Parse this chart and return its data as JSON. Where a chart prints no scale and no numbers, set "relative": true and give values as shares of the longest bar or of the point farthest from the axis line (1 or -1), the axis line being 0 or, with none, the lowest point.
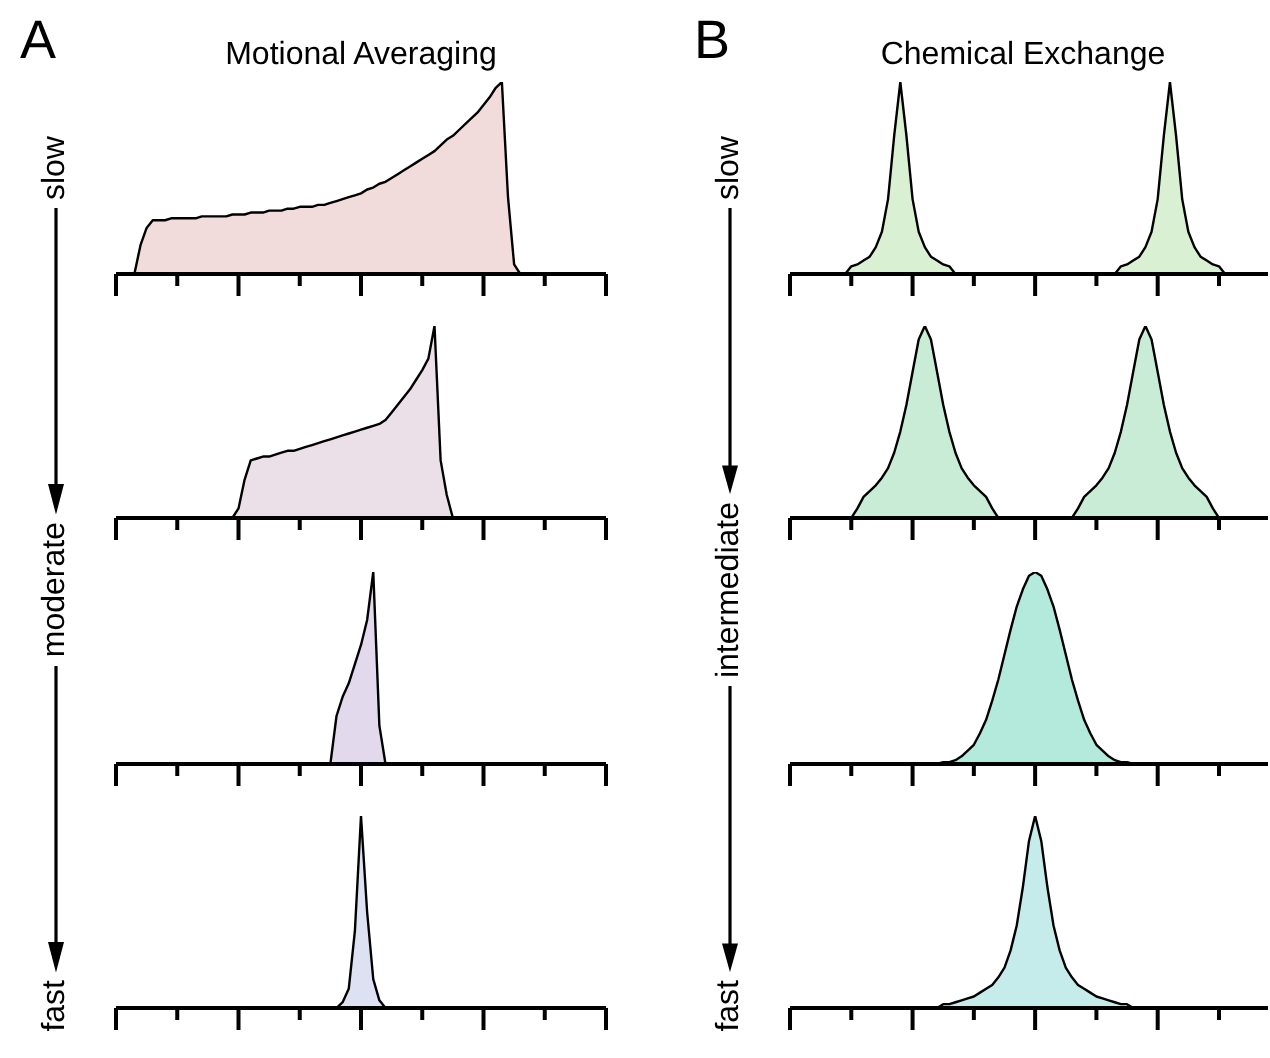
{
  "chart_data": [
    {
      "type": "area",
      "title": "Motional Averaging",
      "annotations": [
        "A",
        "slow"
      ],
      "relative": true,
      "color": "#f2dcdb",
      "categories": [
        null,
        null,
        null,
        null,
        null,
        null,
        null,
        null,
        null,
        null,
        null,
        null,
        null,
        null,
        null,
        null,
        null,
        null,
        null,
        null,
        null,
        null,
        null,
        null,
        null,
        null,
        null,
        null,
        null,
        null,
        null,
        null,
        null,
        null,
        null,
        null,
        null,
        null,
        null,
        null,
        null,
        null,
        null,
        null,
        null,
        null,
        null,
        null,
        null,
        null,
        null,
        null,
        null,
        null,
        null,
        null,
        null,
        null,
        null,
        null,
        null,
        null,
        null,
        null,
        null,
        null,
        null,
        null,
        null,
        null,
        null,
        null,
        null,
        null,
        null,
        null,
        null,
        null,
        null,
        null,
        null
      ],
      "values": [
        0,
        0,
        0,
        0,
        0.15,
        0.24,
        0.28,
        0.28,
        0.28,
        0.29,
        0.29,
        0.29,
        0.29,
        0.29,
        0.3,
        0.3,
        0.3,
        0.3,
        0.3,
        0.31,
        0.31,
        0.31,
        0.32,
        0.32,
        0.32,
        0.33,
        0.33,
        0.33,
        0.34,
        0.34,
        0.35,
        0.35,
        0.35,
        0.36,
        0.36,
        0.37,
        0.38,
        0.39,
        0.4,
        0.41,
        0.42,
        0.44,
        0.45,
        0.47,
        0.48,
        0.5,
        0.52,
        0.54,
        0.56,
        0.58,
        0.6,
        0.62,
        0.64,
        0.67,
        0.7,
        0.72,
        0.75,
        0.78,
        0.81,
        0.84,
        0.88,
        0.92,
        0.97,
        1,
        0.4,
        0.05,
        0,
        0,
        0,
        0,
        0,
        0,
        0,
        0,
        0,
        0,
        0,
        0,
        0,
        0,
        0
      ]
    },
    {
      "type": "area",
      "relative": true,
      "color": "#ebe0e8",
      "categories": [
        null,
        null,
        null,
        null,
        null,
        null,
        null,
        null,
        null,
        null,
        null,
        null,
        null,
        null,
        null,
        null,
        null,
        null,
        null,
        null,
        null,
        null,
        null,
        null,
        null,
        null,
        null,
        null,
        null,
        null,
        null,
        null,
        null,
        null,
        null,
        null,
        null,
        null,
        null,
        null,
        null,
        null,
        null,
        null,
        null,
        null,
        null,
        null,
        null,
        null,
        null,
        null,
        null,
        null,
        null,
        null,
        null,
        null,
        null,
        null,
        null,
        null,
        null,
        null,
        null,
        null,
        null,
        null,
        null,
        null,
        null,
        null,
        null,
        null,
        null,
        null,
        null,
        null,
        null,
        null,
        null
      ],
      "values": [
        0,
        0,
        0,
        0,
        0,
        0,
        0,
        0,
        0,
        0,
        0,
        0,
        0,
        0,
        0,
        0,
        0,
        0,
        0,
        0,
        0.05,
        0.2,
        0.3,
        0.31,
        0.32,
        0.32,
        0.33,
        0.34,
        0.35,
        0.35,
        0.36,
        0.37,
        0.38,
        0.39,
        0.4,
        0.41,
        0.42,
        0.43,
        0.44,
        0.45,
        0.46,
        0.47,
        0.48,
        0.49,
        0.51,
        0.55,
        0.59,
        0.63,
        0.67,
        0.72,
        0.77,
        0.83,
        1,
        0.3,
        0.12,
        0,
        0,
        0,
        0,
        0,
        0,
        0,
        0,
        0,
        0,
        0,
        0,
        0,
        0,
        0,
        0,
        0,
        0,
        0,
        0,
        0,
        0,
        0,
        0,
        0,
        0
      ]
    },
    {
      "type": "area",
      "annotations": [
        "moderate"
      ],
      "relative": true,
      "color": "#e2d9ec",
      "categories": [
        null,
        null,
        null,
        null,
        null,
        null,
        null,
        null,
        null,
        null,
        null,
        null,
        null,
        null,
        null,
        null,
        null,
        null,
        null,
        null,
        null,
        null,
        null,
        null,
        null,
        null,
        null,
        null,
        null,
        null,
        null,
        null,
        null,
        null,
        null,
        null,
        null,
        null,
        null,
        null,
        null,
        null,
        null,
        null,
        null,
        null,
        null,
        null,
        null,
        null,
        null,
        null,
        null,
        null,
        null,
        null,
        null,
        null,
        null,
        null,
        null,
        null,
        null,
        null,
        null,
        null,
        null,
        null,
        null,
        null,
        null,
        null,
        null,
        null,
        null,
        null,
        null,
        null,
        null,
        null,
        null
      ],
      "values": [
        0,
        0,
        0,
        0,
        0,
        0,
        0,
        0,
        0,
        0,
        0,
        0,
        0,
        0,
        0,
        0,
        0,
        0,
        0,
        0,
        0,
        0,
        0,
        0,
        0,
        0,
        0,
        0,
        0,
        0,
        0,
        0,
        0,
        0,
        0,
        0,
        0.25,
        0.35,
        0.42,
        0.52,
        0.62,
        0.75,
        1,
        0.2,
        0,
        0,
        0,
        0,
        0,
        0,
        0,
        0,
        0,
        0,
        0,
        0,
        0,
        0,
        0,
        0,
        0,
        0,
        0,
        0,
        0,
        0,
        0,
        0,
        0,
        0,
        0,
        0,
        0,
        0,
        0,
        0,
        0,
        0,
        0,
        0,
        0
      ]
    },
    {
      "type": "area",
      "annotations": [
        "fast"
      ],
      "relative": true,
      "color": "#dde1f1",
      "categories": [
        null,
        null,
        null,
        null,
        null,
        null,
        null,
        null,
        null,
        null,
        null,
        null,
        null,
        null,
        null,
        null,
        null,
        null,
        null,
        null,
        null,
        null,
        null,
        null,
        null,
        null,
        null,
        null,
        null,
        null,
        null,
        null,
        null,
        null,
        null,
        null,
        null,
        null,
        null,
        null,
        null,
        null,
        null,
        null,
        null,
        null,
        null,
        null,
        null,
        null,
        null,
        null,
        null,
        null,
        null,
        null,
        null,
        null,
        null,
        null,
        null,
        null,
        null,
        null,
        null,
        null,
        null,
        null,
        null,
        null,
        null,
        null,
        null,
        null,
        null,
        null,
        null,
        null,
        null,
        null,
        null
      ],
      "values": [
        0,
        0,
        0,
        0,
        0,
        0,
        0,
        0,
        0,
        0,
        0,
        0,
        0,
        0,
        0,
        0,
        0,
        0,
        0,
        0,
        0,
        0,
        0,
        0,
        0,
        0,
        0,
        0,
        0,
        0,
        0,
        0,
        0,
        0,
        0,
        0,
        0,
        0.03,
        0.1,
        0.4,
        1,
        0.5,
        0.15,
        0.04,
        0,
        0,
        0,
        0,
        0,
        0,
        0,
        0,
        0,
        0,
        0,
        0,
        0,
        0,
        0,
        0,
        0,
        0,
        0,
        0,
        0,
        0,
        0,
        0,
        0,
        0,
        0,
        0,
        0,
        0,
        0,
        0,
        0,
        0,
        0,
        0,
        0
      ]
    },
    {
      "type": "area",
      "title": "Chemical Exchange",
      "annotations": [
        "B",
        "slow"
      ],
      "relative": true,
      "color": "#d9f0d3",
      "categories": [
        null,
        null,
        null,
        null,
        null,
        null,
        null,
        null,
        null,
        null,
        null,
        null,
        null,
        null,
        null,
        null,
        null,
        null,
        null,
        null,
        null,
        null,
        null,
        null,
        null,
        null,
        null,
        null,
        null,
        null,
        null,
        null,
        null,
        null,
        null,
        null,
        null,
        null,
        null,
        null,
        null,
        null,
        null,
        null,
        null,
        null,
        null,
        null,
        null,
        null,
        null,
        null,
        null,
        null,
        null,
        null,
        null,
        null,
        null,
        null,
        null,
        null,
        null,
        null,
        null,
        null,
        null,
        null,
        null,
        null,
        null,
        null,
        null,
        null,
        null,
        null,
        null,
        null,
        null
      ],
      "values": [
        0,
        0,
        0,
        0,
        0,
        0,
        0,
        0,
        0,
        0,
        0.04,
        0.05,
        0.07,
        0.09,
        0.14,
        0.22,
        0.39,
        0.72,
        1,
        0.72,
        0.39,
        0.22,
        0.14,
        0.09,
        0.07,
        0.05,
        0.04,
        0,
        0,
        0,
        0,
        0,
        0,
        0,
        0,
        0,
        0,
        0,
        0,
        0,
        0,
        0,
        0,
        0,
        0,
        0,
        0,
        0,
        0,
        0,
        0,
        0,
        0,
        0,
        0.04,
        0.05,
        0.07,
        0.09,
        0.14,
        0.22,
        0.39,
        0.72,
        1,
        0.72,
        0.39,
        0.22,
        0.14,
        0.09,
        0.07,
        0.05,
        0.04,
        0,
        0,
        0,
        0,
        0,
        0,
        0,
        0
      ]
    },
    {
      "type": "area",
      "relative": true,
      "color": "#c8ecd5",
      "categories": [
        null,
        null,
        null,
        null,
        null,
        null,
        null,
        null,
        null,
        null,
        null,
        null,
        null,
        null,
        null,
        null,
        null,
        null,
        null,
        null,
        null,
        null,
        null,
        null,
        null,
        null,
        null,
        null,
        null,
        null,
        null,
        null,
        null,
        null,
        null,
        null,
        null,
        null,
        null,
        null,
        null,
        null,
        null,
        null,
        null,
        null,
        null,
        null,
        null,
        null,
        null,
        null,
        null,
        null,
        null,
        null,
        null,
        null,
        null,
        null,
        null,
        null,
        null,
        null,
        null,
        null,
        null,
        null,
        null,
        null,
        null,
        null,
        null,
        null,
        null,
        null,
        null,
        null,
        null
      ],
      "values": [
        0,
        0,
        0,
        0,
        0,
        0,
        0,
        0,
        0,
        0,
        0,
        0.05,
        0.11,
        0.14,
        0.17,
        0.21,
        0.26,
        0.34,
        0.45,
        0.59,
        0.76,
        0.93,
        1,
        0.93,
        0.76,
        0.59,
        0.45,
        0.34,
        0.26,
        0.21,
        0.17,
        0.14,
        0.11,
        0.05,
        0,
        0,
        0,
        0,
        0,
        0,
        0,
        0,
        0,
        0,
        0,
        0,
        0,
        0.05,
        0.11,
        0.14,
        0.17,
        0.21,
        0.26,
        0.34,
        0.45,
        0.59,
        0.76,
        0.93,
        1,
        0.93,
        0.76,
        0.59,
        0.45,
        0.34,
        0.26,
        0.21,
        0.17,
        0.14,
        0.11,
        0.05,
        0,
        0,
        0,
        0,
        0,
        0,
        0,
        0,
        0
      ]
    },
    {
      "type": "area",
      "annotations": [
        "intermediate"
      ],
      "relative": true,
      "color": "#b3eadb",
      "categories": [
        null,
        null,
        null,
        null,
        null,
        null,
        null,
        null,
        null,
        null,
        null,
        null,
        null,
        null,
        null,
        null,
        null,
        null,
        null,
        null,
        null,
        null,
        null,
        null,
        null,
        null,
        null,
        null,
        null,
        null,
        null,
        null,
        null,
        null,
        null,
        null,
        null,
        null,
        null,
        null,
        null,
        null,
        null,
        null,
        null,
        null,
        null,
        null,
        null,
        null,
        null,
        null,
        null,
        null,
        null,
        null,
        null,
        null,
        null,
        null,
        null,
        null,
        null,
        null,
        null,
        null,
        null,
        null,
        null,
        null,
        null,
        null,
        null,
        null,
        null,
        null,
        null,
        null,
        null
      ],
      "values": [
        0,
        0,
        0,
        0,
        0,
        0,
        0,
        0,
        0,
        0,
        0,
        0,
        0,
        0,
        0,
        0,
        0,
        0,
        0,
        0,
        0,
        0,
        0,
        0,
        0,
        0.01,
        0.01,
        0.02,
        0.04,
        0.07,
        0.1,
        0.16,
        0.23,
        0.33,
        0.44,
        0.57,
        0.7,
        0.82,
        0.91,
        0.98,
        1,
        0.98,
        0.91,
        0.82,
        0.7,
        0.57,
        0.44,
        0.33,
        0.23,
        0.16,
        0.1,
        0.07,
        0.04,
        0.02,
        0.01,
        0.01,
        0,
        0,
        0,
        0,
        0,
        0,
        0,
        0,
        0,
        0,
        0,
        0,
        0,
        0,
        0,
        0,
        0,
        0,
        0,
        0,
        0,
        0,
        0
      ]
    },
    {
      "type": "area",
      "annotations": [
        "fast"
      ],
      "relative": true,
      "color": "#c5ebea",
      "categories": [
        null,
        null,
        null,
        null,
        null,
        null,
        null,
        null,
        null,
        null,
        null,
        null,
        null,
        null,
        null,
        null,
        null,
        null,
        null,
        null,
        null,
        null,
        null,
        null,
        null,
        null,
        null,
        null,
        null,
        null,
        null,
        null,
        null,
        null,
        null,
        null,
        null,
        null,
        null,
        null,
        null,
        null,
        null,
        null,
        null,
        null,
        null,
        null,
        null,
        null,
        null,
        null,
        null,
        null,
        null,
        null,
        null,
        null,
        null,
        null,
        null,
        null,
        null,
        null,
        null,
        null,
        null,
        null,
        null,
        null,
        null,
        null,
        null,
        null,
        null,
        null,
        null,
        null,
        null
      ],
      "values": [
        0,
        0,
        0,
        0,
        0,
        0,
        0,
        0,
        0,
        0,
        0,
        0,
        0,
        0,
        0,
        0,
        0,
        0,
        0,
        0,
        0,
        0,
        0,
        0,
        0,
        0.02,
        0.02,
        0.03,
        0.04,
        0.05,
        0.06,
        0.08,
        0.1,
        0.12,
        0.16,
        0.21,
        0.3,
        0.43,
        0.63,
        0.87,
        1,
        0.87,
        0.63,
        0.43,
        0.3,
        0.21,
        0.16,
        0.12,
        0.1,
        0.08,
        0.06,
        0.05,
        0.04,
        0.03,
        0.02,
        0.02,
        0,
        0,
        0,
        0,
        0,
        0,
        0,
        0,
        0,
        0,
        0,
        0,
        0,
        0,
        0,
        0,
        0,
        0,
        0,
        0,
        0,
        0,
        0
      ]
    }
  ]
}
